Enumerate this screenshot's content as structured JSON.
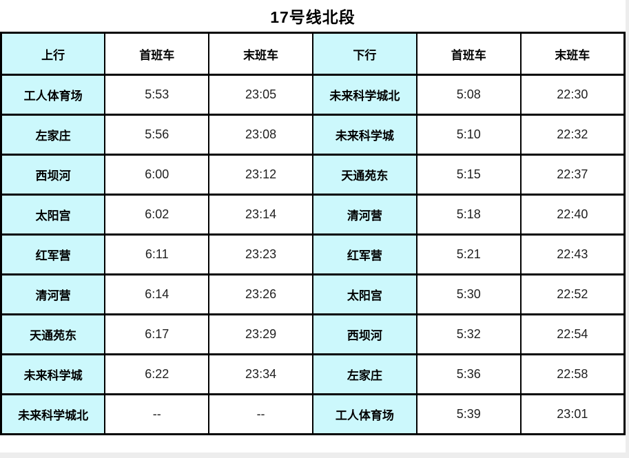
{
  "title": "17号线北段",
  "colors": {
    "station_cell_bg": "#ccf8fc",
    "border": "#000000",
    "page_bg": "#ededed",
    "title_text": "#000000",
    "time_text": "#1f1f1f"
  },
  "table": {
    "headers": [
      {
        "label": "上行",
        "highlight": true
      },
      {
        "label": "首班车",
        "highlight": false
      },
      {
        "label": "末班车",
        "highlight": false
      },
      {
        "label": "下行",
        "highlight": true
      },
      {
        "label": "首班车",
        "highlight": false
      },
      {
        "label": "末班车",
        "highlight": false
      }
    ],
    "rows": [
      {
        "up_station": "工人体育场",
        "up_first": "5:53",
        "up_last": "23:05",
        "down_station": "未来科学城北",
        "down_first": "5:08",
        "down_last": "22:30"
      },
      {
        "up_station": "左家庄",
        "up_first": "5:56",
        "up_last": "23:08",
        "down_station": "未来科学城",
        "down_first": "5:10",
        "down_last": "22:32"
      },
      {
        "up_station": "西坝河",
        "up_first": "6:00",
        "up_last": "23:12",
        "down_station": "天通苑东",
        "down_first": "5:15",
        "down_last": "22:37"
      },
      {
        "up_station": "太阳宫",
        "up_first": "6:02",
        "up_last": "23:14",
        "down_station": "清河营",
        "down_first": "5:18",
        "down_last": "22:40"
      },
      {
        "up_station": "红军营",
        "up_first": "6:11",
        "up_last": "23:23",
        "down_station": "红军营",
        "down_first": "5:21",
        "down_last": "22:43"
      },
      {
        "up_station": "清河营",
        "up_first": "6:14",
        "up_last": "23:26",
        "down_station": "太阳宫",
        "down_first": "5:30",
        "down_last": "22:52"
      },
      {
        "up_station": "天通苑东",
        "up_first": "6:17",
        "up_last": "23:29",
        "down_station": "西坝河",
        "down_first": "5:32",
        "down_last": "22:54"
      },
      {
        "up_station": "未来科学城",
        "up_first": "6:22",
        "up_last": "23:34",
        "down_station": "左家庄",
        "down_first": "5:36",
        "down_last": "22:58"
      },
      {
        "up_station": "未来科学城北",
        "up_first": "--",
        "up_last": "--",
        "down_station": "工人体育场",
        "down_first": "5:39",
        "down_last": "23:01"
      }
    ]
  }
}
